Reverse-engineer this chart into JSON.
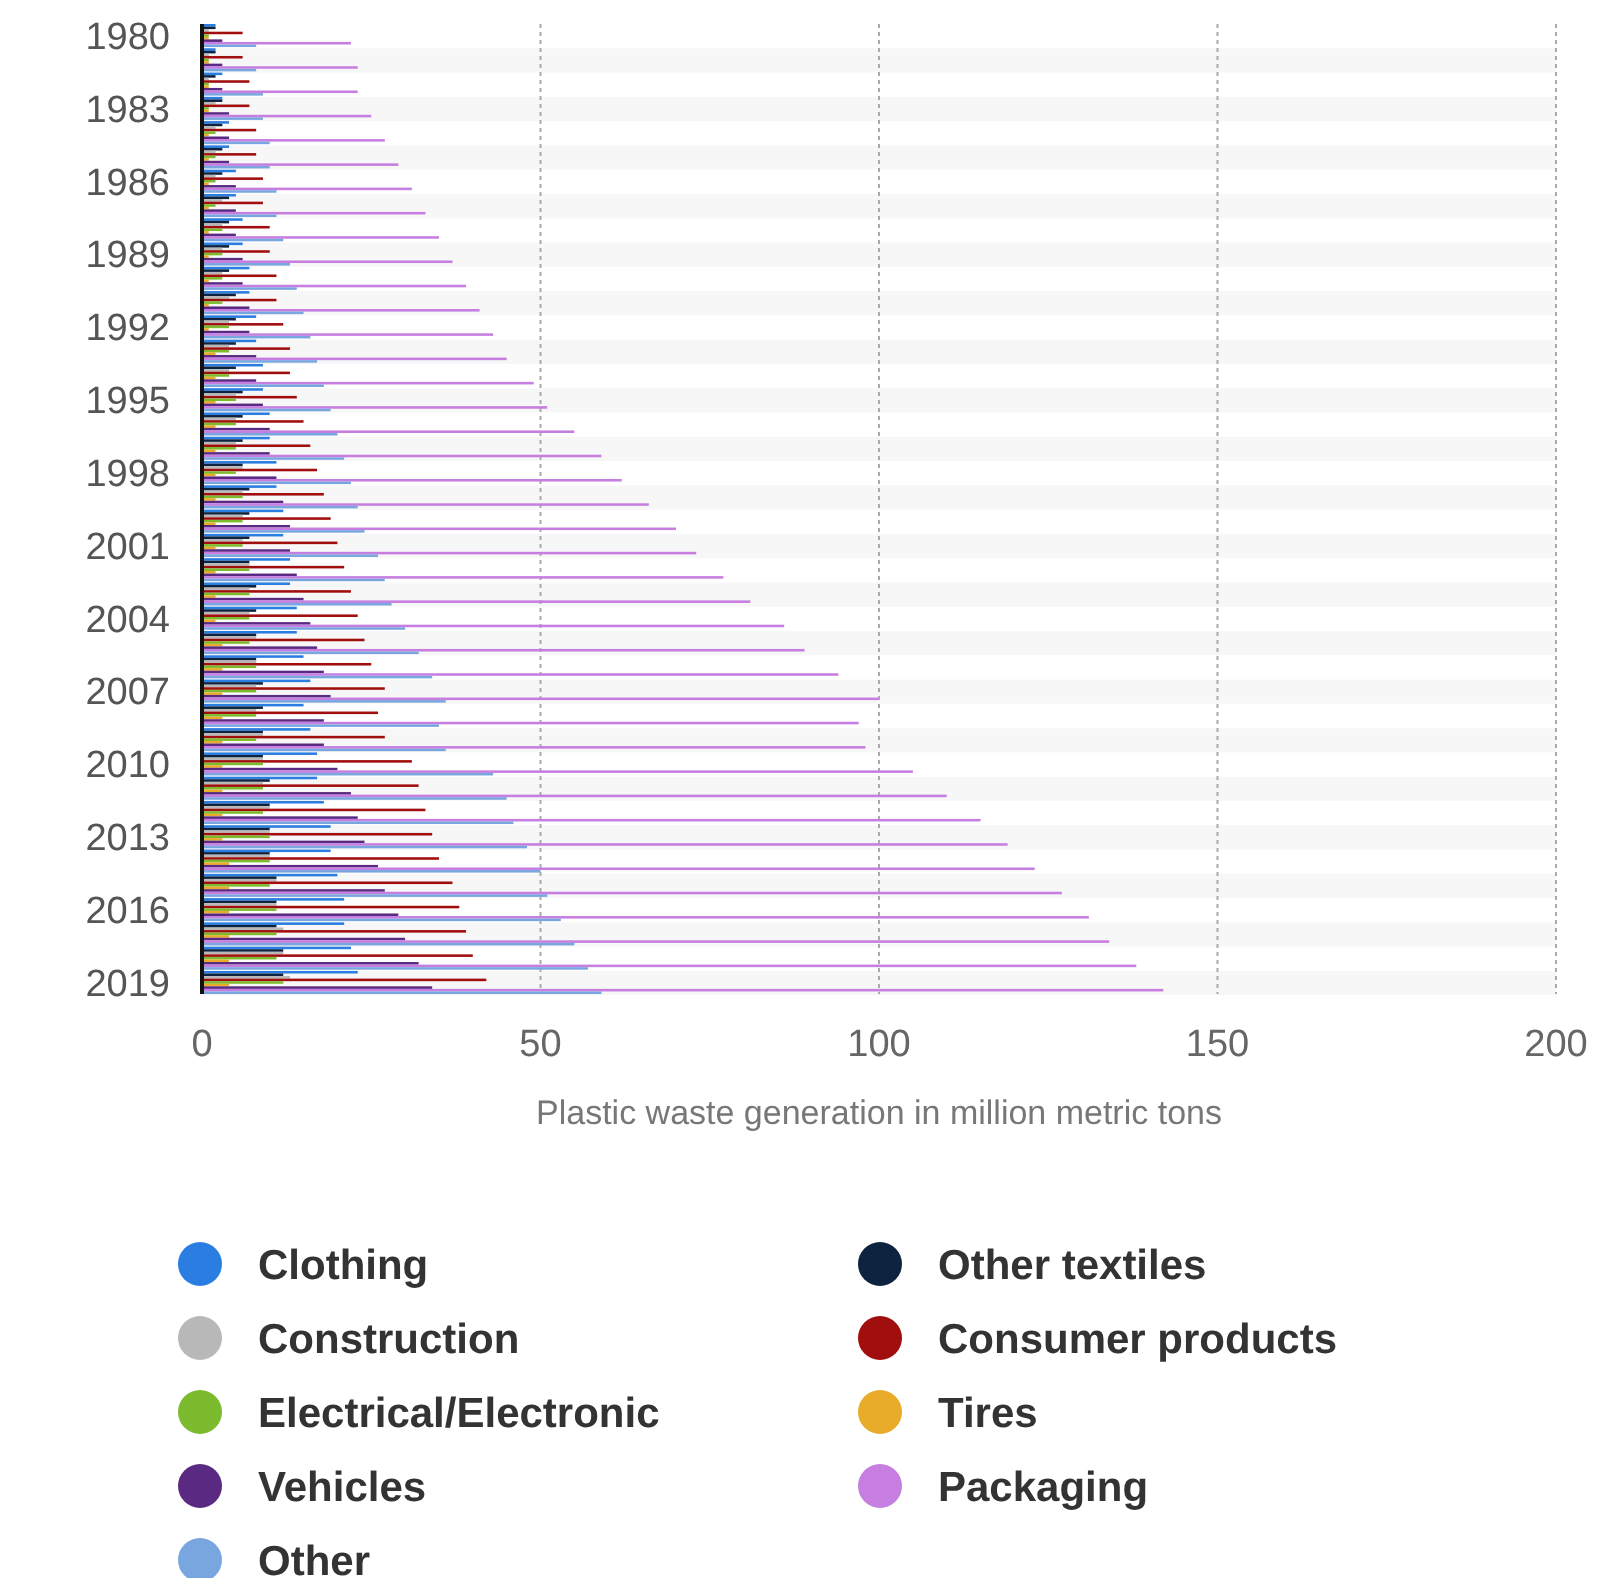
{
  "chart_data": {
    "type": "bar",
    "orientation": "horizontal",
    "xlabel": "Plastic waste generation in million metric tons",
    "categories": [
      "1980",
      null,
      null,
      "1983",
      null,
      null,
      "1986",
      null,
      null,
      "1989",
      null,
      null,
      "1992",
      null,
      null,
      "1995",
      null,
      null,
      "1998",
      null,
      null,
      "2001",
      null,
      null,
      "2004",
      null,
      null,
      "2007",
      null,
      null,
      "2010",
      null,
      null,
      "2013",
      null,
      null,
      "2016",
      null,
      null,
      "2019"
    ],
    "xlim": [
      0,
      200
    ],
    "xticks": [
      0,
      50,
      100,
      150,
      200
    ],
    "grid": "x",
    "legend": "bottom",
    "series": [
      {
        "name": "Clothing",
        "color": "#2a7de1",
        "values": [
          2,
          2,
          3,
          3,
          4,
          4,
          5,
          5,
          6,
          6,
          7,
          7,
          8,
          8,
          9,
          9,
          10,
          10,
          11,
          11,
          12,
          12,
          13,
          13,
          14,
          14,
          15,
          16,
          15,
          16,
          17,
          17,
          18,
          19,
          19,
          20,
          21,
          21,
          22,
          23
        ]
      },
      {
        "name": "Other textiles",
        "color": "#0e2340",
        "values": [
          2,
          2,
          2,
          3,
          3,
          3,
          3,
          4,
          4,
          4,
          4,
          5,
          5,
          5,
          5,
          6,
          6,
          6,
          6,
          7,
          7,
          7,
          7,
          8,
          8,
          8,
          8,
          9,
          9,
          9,
          9,
          10,
          10,
          10,
          10,
          11,
          11,
          11,
          12,
          12
        ]
      },
      {
        "name": "Construction",
        "color": "#b8b8b8",
        "values": [
          1,
          1,
          1,
          2,
          2,
          2,
          2,
          3,
          3,
          3,
          3,
          4,
          4,
          4,
          4,
          5,
          5,
          5,
          6,
          6,
          6,
          6,
          7,
          7,
          7,
          8,
          8,
          8,
          8,
          9,
          9,
          9,
          10,
          10,
          10,
          11,
          11,
          12,
          12,
          13
        ]
      },
      {
        "name": "Consumer products",
        "color": "#a10e0e",
        "values": [
          6,
          6,
          7,
          7,
          8,
          8,
          9,
          9,
          10,
          10,
          11,
          11,
          12,
          13,
          13,
          14,
          15,
          16,
          17,
          18,
          19,
          20,
          21,
          22,
          23,
          24,
          25,
          27,
          26,
          27,
          31,
          32,
          33,
          34,
          35,
          37,
          38,
          39,
          40,
          42
        ]
      },
      {
        "name": "Electrical/Electronic",
        "color": "#7cbb2e",
        "values": [
          1,
          1,
          1,
          1,
          2,
          2,
          2,
          2,
          3,
          3,
          3,
          3,
          4,
          4,
          4,
          5,
          5,
          5,
          5,
          6,
          6,
          6,
          7,
          7,
          7,
          7,
          8,
          8,
          8,
          8,
          9,
          9,
          9,
          10,
          10,
          10,
          11,
          11,
          11,
          12
        ]
      },
      {
        "name": "Tires",
        "color": "#e8ac2a",
        "values": [
          1,
          1,
          1,
          1,
          1,
          1,
          1,
          1,
          1,
          1,
          1,
          1,
          1,
          2,
          2,
          2,
          2,
          2,
          2,
          2,
          2,
          2,
          2,
          2,
          2,
          3,
          3,
          3,
          3,
          3,
          3,
          3,
          3,
          3,
          4,
          4,
          4,
          4,
          4,
          4
        ]
      },
      {
        "name": "Vehicles",
        "color": "#5a2a82",
        "values": [
          3,
          3,
          3,
          4,
          4,
          4,
          5,
          5,
          5,
          6,
          6,
          7,
          7,
          8,
          8,
          9,
          10,
          10,
          11,
          12,
          13,
          13,
          14,
          15,
          16,
          17,
          18,
          19,
          18,
          18,
          20,
          22,
          23,
          24,
          26,
          27,
          29,
          30,
          32,
          34
        ]
      },
      {
        "name": "Packaging",
        "color": "#c67ee0",
        "values": [
          22,
          23,
          23,
          25,
          27,
          29,
          31,
          33,
          35,
          37,
          39,
          41,
          43,
          45,
          49,
          51,
          55,
          59,
          62,
          66,
          70,
          73,
          77,
          81,
          86,
          89,
          94,
          100,
          97,
          98,
          105,
          110,
          115,
          119,
          123,
          127,
          131,
          134,
          138,
          142
        ]
      },
      {
        "name": "Other",
        "color": "#7aa6e0",
        "values": [
          8,
          8,
          9,
          9,
          10,
          10,
          11,
          11,
          12,
          13,
          14,
          15,
          16,
          17,
          18,
          19,
          20,
          21,
          22,
          23,
          24,
          26,
          27,
          28,
          30,
          32,
          34,
          36,
          35,
          36,
          43,
          45,
          46,
          48,
          50,
          51,
          53,
          55,
          57,
          59
        ]
      }
    ]
  }
}
